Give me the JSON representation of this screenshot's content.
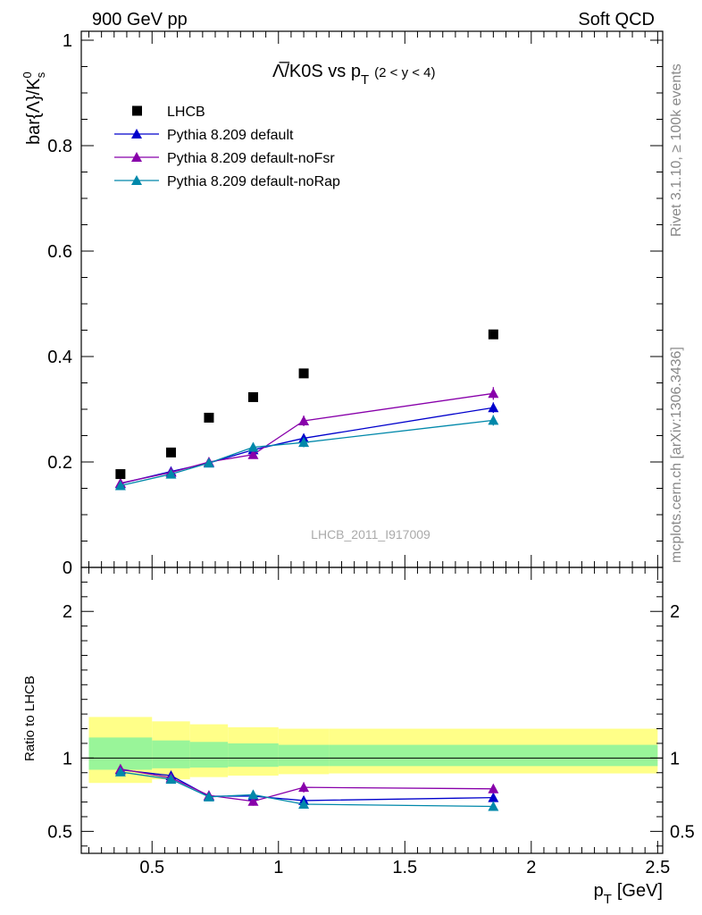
{
  "header": {
    "left": "900 GeV pp",
    "right": "Soft QCD"
  },
  "side_text": {
    "top": "Rivet 3.1.10, ≥ 100k events",
    "bottom": "mcplots.cern.ch [arXiv:1306.3436]"
  },
  "watermark": "LHCB_2011_I917009",
  "chart_data": [
    {
      "type": "scatter",
      "title": "Λ̅/K0S vs p",
      "title_sub": "T",
      "title_cut": "(2 < y < 4)",
      "ylabel": "bar{Λ}/K",
      "ylabel_sup": "0",
      "ylabel_sub": "s",
      "ylim": [
        0,
        1
      ],
      "yticks": [
        {
          "v": 0,
          "label": "0"
        },
        {
          "v": 0.2,
          "label": "0.2"
        },
        {
          "v": 0.4,
          "label": "0.4"
        },
        {
          "v": 0.6,
          "label": "0.6"
        },
        {
          "v": 0.8,
          "label": "0.8"
        },
        {
          "v": 1,
          "label": "1"
        }
      ],
      "legend": [
        {
          "name": "LHCB",
          "color": "#000000",
          "marker": "square"
        },
        {
          "name": "Pythia 8.209 default",
          "color": "#0000cc",
          "marker": "triangle"
        },
        {
          "name": "Pythia 8.209 default-noFsr",
          "color": "#8800aa",
          "marker": "triangle"
        },
        {
          "name": "Pythia 8.209 default-noRap",
          "color": "#0088aa",
          "marker": "triangle"
        }
      ],
      "data": {
        "x": [
          0.375,
          0.575,
          0.725,
          0.9,
          1.1,
          1.85
        ],
        "values": [
          0.177,
          0.218,
          0.284,
          0.323,
          0.368,
          0.442
        ]
      },
      "series": [
        {
          "key": "default",
          "color": "#0000cc",
          "values": [
            0.159,
            0.182,
            0.198,
            0.223,
            0.245,
            0.303
          ],
          "errors": [
            0.004,
            0.005,
            0.006,
            0.007,
            0.008,
            0.01
          ]
        },
        {
          "key": "noFsr",
          "color": "#8800aa",
          "values": [
            0.16,
            0.18,
            0.2,
            0.214,
            0.278,
            0.33
          ],
          "errors": [
            0.004,
            0.005,
            0.006,
            0.007,
            0.01,
            0.012
          ]
        },
        {
          "key": "noRap",
          "color": "#0088aa",
          "values": [
            0.155,
            0.177,
            0.198,
            0.228,
            0.237,
            0.279
          ],
          "errors": [
            0.004,
            0.005,
            0.006,
            0.008,
            0.009,
            0.01
          ]
        }
      ]
    },
    {
      "type": "scatter",
      "ylabel": "Ratio to LHCB",
      "xlabel": "p",
      "xlabel_sub": "T",
      "xlabel_unit": "[GeV]",
      "xlim": [
        0.22,
        2.52
      ],
      "ylim": [
        0.35,
        2.3
      ],
      "yticks": [
        {
          "v": 0.5,
          "label": "0.5"
        },
        {
          "v": 1,
          "label": "1"
        },
        {
          "v": 2,
          "label": "2"
        }
      ],
      "xticks": [
        {
          "v": 0.5,
          "label": "0.5"
        },
        {
          "v": 1,
          "label": "1"
        },
        {
          "v": 1.5,
          "label": "1.5"
        },
        {
          "v": 2,
          "label": "2"
        },
        {
          "v": 2.5,
          "label": "2.5"
        }
      ],
      "bands": [
        {
          "x0": 0.25,
          "x1": 0.5,
          "y_lo": 0.83,
          "y_hi": 1.28,
          "g_lo": 0.92,
          "g_hi": 1.14
        },
        {
          "x0": 0.5,
          "x1": 0.65,
          "y_lo": 0.855,
          "y_hi": 1.25,
          "g_lo": 0.93,
          "g_hi": 1.12
        },
        {
          "x0": 0.65,
          "x1": 0.8,
          "y_lo": 0.87,
          "y_hi": 1.23,
          "g_lo": 0.935,
          "g_hi": 1.11
        },
        {
          "x0": 0.8,
          "x1": 1.0,
          "y_lo": 0.88,
          "y_hi": 1.21,
          "g_lo": 0.94,
          "g_hi": 1.1
        },
        {
          "x0": 1.0,
          "x1": 1.2,
          "y_lo": 0.89,
          "y_hi": 1.2,
          "g_lo": 0.945,
          "g_hi": 1.09
        },
        {
          "x0": 1.2,
          "x1": 2.5,
          "y_lo": 0.895,
          "y_hi": 1.2,
          "g_lo": 0.945,
          "g_hi": 1.09
        }
      ],
      "x": [
        0.375,
        0.575,
        0.725,
        0.9,
        1.1,
        1.85
      ],
      "series": [
        {
          "key": "default",
          "color": "#0000cc",
          "values": [
            0.92,
            0.88,
            0.74,
            0.74,
            0.71,
            0.73
          ],
          "errors": [
            0.02,
            0.025,
            0.025,
            0.025,
            0.03,
            0.025
          ]
        },
        {
          "key": "noFsr",
          "color": "#8800aa",
          "values": [
            0.925,
            0.865,
            0.745,
            0.705,
            0.8,
            0.79
          ],
          "errors": [
            0.02,
            0.025,
            0.025,
            0.03,
            0.035,
            0.03
          ]
        },
        {
          "key": "noRap",
          "color": "#0088aa",
          "values": [
            0.905,
            0.855,
            0.735,
            0.75,
            0.685,
            0.67
          ],
          "errors": [
            0.02,
            0.025,
            0.025,
            0.03,
            0.03,
            0.025
          ]
        }
      ]
    }
  ]
}
